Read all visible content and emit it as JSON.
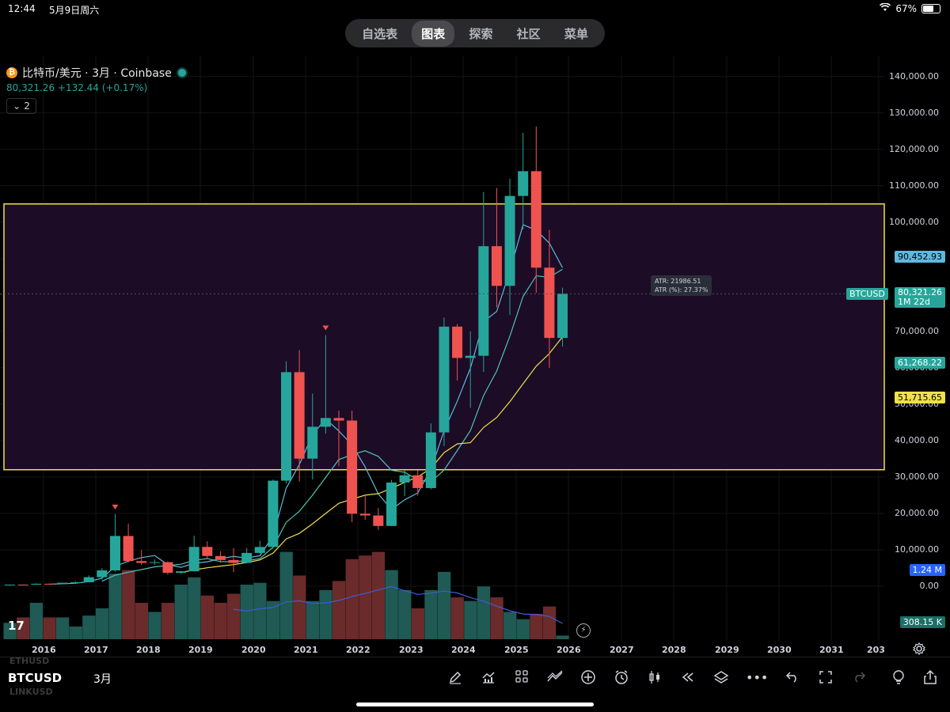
{
  "status_bar": {
    "time": "12:44",
    "date": "5月9日周六",
    "battery": "67%"
  },
  "nav": {
    "tabs": [
      "自选表",
      "图表",
      "探索",
      "社区",
      "菜单"
    ],
    "active": 1
  },
  "symbol": {
    "title": "比特币/美元 · 3月 · Coinbase",
    "price_line": "80,321.26  +132.44 (+0.17%)",
    "collapse_count": "2"
  },
  "price_axis": {
    "labels": [
      "140,000.00",
      "130,000.00",
      "120,000.00",
      "110,000.00",
      "100,000.00",
      "90,000.00",
      "80,000.00",
      "70,000.00",
      "60,000.00",
      "50,000.00",
      "40,000.00",
      "30,000.00",
      "20,000.00",
      "10,000.00",
      "0.00"
    ]
  },
  "price_tags": {
    "ma_top": "90,452.93",
    "btcusd_label": "BTCUSD",
    "last_price": "80,321.26",
    "countdown": "1M 22d",
    "ma_mid": "61,268.22",
    "ma_low": "51,715.65",
    "vol_ma": "1.24 M",
    "volume": "308.15 K"
  },
  "atr_tooltip": {
    "line1": "ATR: 21986.51",
    "line2": "ATR (%): 27.37%"
  },
  "time_axis": [
    "2016",
    "2017",
    "2018",
    "2019",
    "2020",
    "2021",
    "2022",
    "2023",
    "2024",
    "2025",
    "2026",
    "2027",
    "2028",
    "2029",
    "2030",
    "2031",
    "203"
  ],
  "bottom_bar": {
    "symbol": "BTCUSD",
    "ghost_prev": "ETHUSD",
    "ghost_next": "LINKUSD",
    "interval": "3月"
  },
  "colors": {
    "up": "#26a69a",
    "down": "#ef5350",
    "zone_border": "#f0e04a",
    "zone_fill": "#1c0c26"
  },
  "chart_data": {
    "type": "candlestick",
    "interval": "3M",
    "x": [
      "2015-Q4",
      "2016-Q1",
      "2016-Q2",
      "2016-Q3",
      "2016-Q4",
      "2017-Q1",
      "2017-Q2",
      "2017-Q3",
      "2017-Q4",
      "2018-Q1",
      "2018-Q2",
      "2018-Q3",
      "2018-Q4",
      "2019-Q1",
      "2019-Q2",
      "2019-Q3",
      "2019-Q4",
      "2020-Q1",
      "2020-Q2",
      "2020-Q3",
      "2020-Q4",
      "2021-Q1",
      "2021-Q2",
      "2021-Q3",
      "2021-Q4",
      "2022-Q1",
      "2022-Q2",
      "2022-Q3",
      "2022-Q4",
      "2023-Q1",
      "2023-Q2",
      "2023-Q3",
      "2023-Q4",
      "2024-Q1",
      "2024-Q2",
      "2024-Q3",
      "2024-Q4",
      "2025-Q1",
      "2025-Q2",
      "2025-Q3",
      "2025-Q4",
      "2026-Q1",
      "2026-Q2"
    ],
    "ohlc": [
      [
        250,
        470,
        240,
        430
      ],
      [
        430,
        470,
        370,
        420
      ],
      [
        420,
        780,
        410,
        670
      ],
      [
        670,
        730,
        480,
        610
      ],
      [
        610,
        980,
        590,
        960
      ],
      [
        960,
        1350,
        890,
        1080
      ],
      [
        1080,
        2980,
        1080,
        2480
      ],
      [
        2480,
        4980,
        1830,
        4340
      ],
      [
        4340,
        19800,
        4000,
        13800
      ],
      [
        13800,
        17200,
        6500,
        6900
      ],
      [
        6900,
        9990,
        5800,
        6400
      ],
      [
        6400,
        7400,
        5900,
        6600
      ],
      [
        6600,
        6800,
        3200,
        3700
      ],
      [
        3700,
        4200,
        3350,
        4100
      ],
      [
        4100,
        13880,
        4050,
        10800
      ],
      [
        10800,
        12300,
        7700,
        8300
      ],
      [
        8300,
        9600,
        6450,
        7200
      ],
      [
        7200,
        10500,
        3850,
        6400
      ],
      [
        6400,
        10500,
        6200,
        9150
      ],
      [
        9150,
        12500,
        8900,
        10780
      ],
      [
        10780,
        29300,
        10350,
        28990
      ],
      [
        28990,
        61800,
        28200,
        58800
      ],
      [
        58800,
        64900,
        28800,
        35040
      ],
      [
        35040,
        52900,
        29300,
        43800
      ],
      [
        43800,
        69000,
        41900,
        46200
      ],
      [
        46200,
        48200,
        32950,
        45500
      ],
      [
        45500,
        48200,
        17600,
        19900
      ],
      [
        19900,
        25200,
        18200,
        19430
      ],
      [
        19430,
        21500,
        15480,
        16550
      ],
      [
        16550,
        29200,
        16500,
        28480
      ],
      [
        28480,
        31800,
        24750,
        30470
      ],
      [
        30470,
        31800,
        24900,
        26960
      ],
      [
        26960,
        44700,
        26600,
        42250
      ],
      [
        42250,
        73800,
        38500,
        71300
      ],
      [
        71300,
        72000,
        56500,
        62700
      ],
      [
        62700,
        70000,
        49000,
        63300
      ],
      [
        63300,
        108300,
        58900,
        93400
      ],
      [
        93400,
        109350,
        76600,
        82500
      ],
      [
        82500,
        111900,
        74500,
        107200
      ],
      [
        107200,
        124500,
        98000,
        114000
      ],
      [
        114000,
        126300,
        80600,
        87500
      ],
      [
        87500,
        97900,
        60000,
        68200
      ],
      [
        68200,
        82000,
        65800,
        80321.26
      ]
    ],
    "last": 80321.26,
    "ma_levels_current": {
      "ma_fast": 90452.93,
      "ma_mid": 61268.22,
      "ma_slow": 51715.65
    },
    "volume_ma_current": "1.24 M",
    "volume_current": "308.15 K",
    "volume_relative": [
      0.45,
      0.6,
      1.0,
      0.6,
      0.6,
      0.35,
      0.65,
      0.85,
      1.8,
      1.9,
      1.0,
      0.75,
      1.0,
      1.5,
      1.7,
      1.2,
      1.0,
      1.25,
      1.5,
      1.55,
      1.05,
      2.4,
      1.75,
      1.05,
      1.35,
      1.6,
      2.2,
      2.3,
      2.4,
      1.9,
      1.35,
      0.85,
      1.35,
      1.85,
      1.15,
      1.05,
      1.45,
      1.15,
      0.75,
      0.55,
      0.7,
      0.9,
      0.1
    ],
    "zone": {
      "from": 32000,
      "to": 105000
    },
    "atr": 21986.51,
    "atr_pct": "27.37%",
    "ylim": [
      0,
      140000
    ],
    "grid": true
  }
}
